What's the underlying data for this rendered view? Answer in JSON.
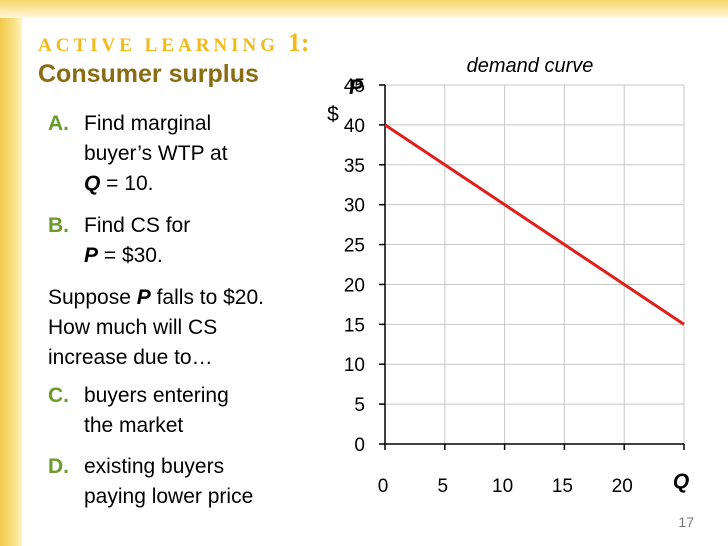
{
  "slide": {
    "heading_text": "ACTIVE LEARNING",
    "heading_number": "1:",
    "subheading": "Consumer surplus",
    "items": [
      {
        "letter": "A.",
        "line1": "Find marginal",
        "line2": "buyer’s WTP at",
        "line3_var": "Q",
        "line3_rest": " = 10."
      },
      {
        "letter": "B.",
        "line1": "Find CS for",
        "line2_var": "P",
        "line2_rest": " = $30."
      }
    ],
    "suppose": {
      "part1": "Suppose ",
      "var": "P",
      "part2": " falls to $20.",
      "line2": "How much will CS",
      "line3": "increase due to…"
    },
    "items2": [
      {
        "letter": "C.",
        "line1": "buyers entering",
        "line2": "the market"
      },
      {
        "letter": "D.",
        "line1": "existing buyers",
        "line2": "paying lower price"
      }
    ],
    "page_number": "17"
  },
  "chart_data": {
    "type": "line",
    "title": "demand curve",
    "xlabel": "Q",
    "ylabel": "P",
    "yunit": "$",
    "xlim": [
      0,
      25
    ],
    "ylim": [
      0,
      45
    ],
    "xticks": [
      0,
      5,
      10,
      15,
      20
    ],
    "yticks": [
      0,
      5,
      10,
      15,
      20,
      25,
      30,
      35,
      40,
      45
    ],
    "grid": true,
    "series": [
      {
        "x": [
          0,
          25
        ],
        "y": [
          40,
          15
        ],
        "color": "#e0201b"
      }
    ]
  }
}
